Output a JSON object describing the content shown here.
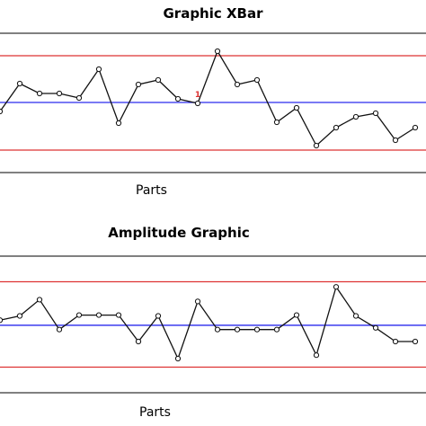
{
  "colors": {
    "limit": "#dd3333",
    "center": "#2a2aee",
    "frame": "#000000",
    "series": "#111111"
  },
  "chart_data": [
    {
      "type": "line",
      "title": "Graphic XBar",
      "xlabel": "Parts",
      "ucl": 1.0,
      "center": 0.48,
      "lcl": -0.05,
      "ylim": [
        -0.3,
        1.25
      ],
      "annotations": [
        {
          "index": 10,
          "text": "1"
        }
      ],
      "values": [
        0.38,
        0.69,
        0.58,
        0.58,
        0.53,
        0.85,
        0.25,
        0.68,
        0.73,
        0.52,
        0.47,
        1.05,
        0.68,
        0.73,
        0.26,
        0.42,
        0.0,
        0.2,
        0.32,
        0.36,
        0.06,
        0.2
      ]
    },
    {
      "type": "line",
      "title": "Amplitude Graphic",
      "xlabel": "Parts",
      "ucl": 1.0,
      "center": 0.49,
      "lcl": 0.0,
      "ylim": [
        -0.3,
        1.3
      ],
      "values": [
        0.55,
        0.6,
        0.79,
        0.44,
        0.61,
        0.61,
        0.61,
        0.3,
        0.6,
        0.1,
        0.77,
        0.44,
        0.44,
        0.44,
        0.44,
        0.61,
        0.14,
        0.94,
        0.6,
        0.46,
        0.3,
        0.3
      ]
    }
  ]
}
